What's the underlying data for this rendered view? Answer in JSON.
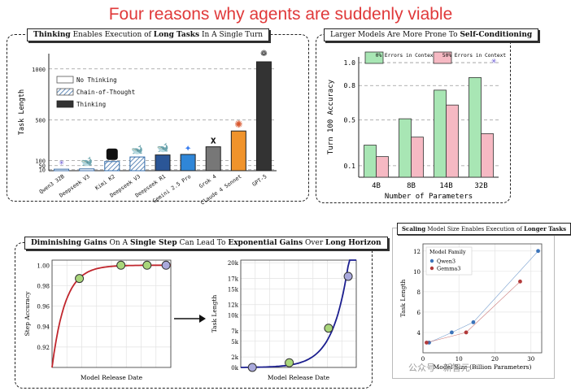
{
  "headline": "Four reasons why agents are suddenly viable",
  "footer": "公众号 · 新智元",
  "panel1": {
    "title_parts": [
      "Thinking",
      " Enables Execution of ",
      "Long Tasks",
      " In A Single Turn"
    ],
    "legend": [
      "No Thinking",
      "Chain-of-Thought",
      "Thinking"
    ],
    "colors": {
      "navy": "#2b5697",
      "sky": "#2f86d8",
      "gray": "#777777",
      "orange": "#f0932b",
      "dark": "#333333"
    }
  },
  "panel2": {
    "title_parts": [
      "Larger Models Are More Prone To ",
      "Self-Conditioning"
    ],
    "colors": {
      "green": "#a8e6b4",
      "pink": "#f6b9c3"
    }
  },
  "panel3": {
    "title_parts": [
      "Diminishing Gains",
      " On A ",
      "Single Step",
      " Can Lead To ",
      "Exponential Gains",
      " Over ",
      "Long Horizon"
    ],
    "colors": {
      "red": "#c0262d",
      "blue": "#1b1e8f",
      "green_pt": "#a9d67a",
      "purple_pt": "#a9a9dc"
    }
  },
  "panel4": {
    "title_parts": [
      "Scaling",
      " Model Size Enables Execution of ",
      "Longer Tasks"
    ],
    "colors": {
      "blue": "#3b73b9",
      "red": "#b23a3a"
    }
  },
  "chart_data": [
    {
      "type": "bar",
      "title": "Thinking Enables Execution of Long Tasks In A Single Turn",
      "ylabel": "Task Length",
      "yticks": [
        10,
        50,
        100,
        500,
        1000
      ],
      "ytick_labels": [
        "10",
        "50",
        "100",
        "500",
        "1000"
      ],
      "ylim": [
        0,
        1150
      ],
      "legend": [
        "No Thinking",
        "Chain-of-Thought",
        "Thinking"
      ],
      "categories": [
        "Qwen3 32B",
        "Deepseek V3",
        "Kimi K2",
        "Deepseek V3",
        "Deepseek R1",
        "Gemini 2.5 Pro",
        "Grok 4",
        "Claude 4 Sonnet",
        "GPT-5"
      ],
      "values": [
        15,
        18,
        90,
        135,
        155,
        160,
        235,
        390,
        1070
      ],
      "styles": [
        "nothink",
        "nothink",
        "cot",
        "cot",
        "thinking",
        "thinking",
        "thinking",
        "thinking",
        "thinking"
      ]
    },
    {
      "type": "bar",
      "title": "Larger Models Are More Prone To Self-Conditioning",
      "xlabel": "Number of Parameters",
      "ylabel": "Turn 100 Accuracy",
      "ylim": [
        0,
        1.05
      ],
      "yticks": [
        0.1,
        0.5,
        0.8,
        1.0
      ],
      "ytick_labels": [
        "0.1",
        "0.5",
        "0.8",
        "1.0"
      ],
      "categories": [
        "4B",
        "8B",
        "14B",
        "32B"
      ],
      "series": [
        {
          "name": "0% Errors in Context",
          "values": [
            0.28,
            0.51,
            0.76,
            0.87
          ]
        },
        {
          "name": "50% Errors in Context",
          "values": [
            0.18,
            0.35,
            0.63,
            0.38
          ]
        }
      ]
    },
    {
      "type": "line",
      "title": "Step Accuracy",
      "xlabel": "Model Release Date",
      "ylabel": "Step Accuracy",
      "ylim": [
        0.9,
        1.005
      ],
      "yticks": [
        0.92,
        0.94,
        0.96,
        0.98,
        1.0
      ],
      "ytick_labels": [
        "0.92",
        "0.94",
        "0.96",
        "0.98",
        "1.00"
      ],
      "points_x": [
        0.23,
        0.58,
        0.8,
        0.96
      ],
      "points_y": [
        0.987,
        1.0,
        1.0,
        1.0
      ]
    },
    {
      "type": "line",
      "title": "Task Length",
      "xlabel": "Model Release Date",
      "ylabel": "Task Length",
      "ylim": [
        0,
        20500
      ],
      "yticks": [
        0,
        2000,
        5000,
        7000,
        10000,
        12000,
        15000,
        17000,
        20000
      ],
      "ytick_labels": [
        "0k",
        "2k",
        "5k",
        "7k",
        "10k",
        "12k",
        "15k",
        "17k",
        "20k"
      ],
      "points_x": [
        0.1,
        0.42,
        0.76,
        0.93
      ],
      "points_y": [
        0,
        900,
        7500,
        17400
      ]
    },
    {
      "type": "scatter",
      "title": "Scaling Model Size Enables Execution of Longer Tasks",
      "xlabel": "Model Size (Billion Parameters)",
      "ylabel": "Task Length",
      "xlim": [
        0,
        33
      ],
      "ylim": [
        2,
        12.7
      ],
      "xticks": [
        0,
        10,
        20,
        30
      ],
      "yticks": [
        4,
        6,
        8,
        10,
        12
      ],
      "xtick_labels": [
        "0",
        "10",
        "20",
        "30"
      ],
      "ytick_labels": [
        "4",
        "6",
        "8",
        "10",
        "12"
      ],
      "legend_title": "Model Family",
      "series": [
        {
          "name": "Qwen3",
          "x": [
            1.7,
            8,
            14,
            32
          ],
          "y": [
            3,
            4,
            5,
            12
          ]
        },
        {
          "name": "Gemma3",
          "x": [
            1,
            12,
            27
          ],
          "y": [
            3,
            4,
            9
          ]
        }
      ]
    }
  ]
}
